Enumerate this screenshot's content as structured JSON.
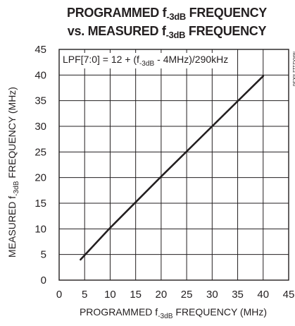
{
  "chart_data": {
    "type": "line",
    "title_line1": {
      "prefix": "PROGRAMMED f",
      "sub": "-3dB",
      "suffix": " FREQUENCY"
    },
    "title_line2": {
      "prefix": "vs. MEASURED f",
      "sub": "-3dB",
      "suffix": " FREQUENCY"
    },
    "xlabel": {
      "prefix": "PROGRAMMED f",
      "sub": "-3dB",
      "suffix": " FREQUENCY (MHz)"
    },
    "ylabel": {
      "prefix": "MEASURED f",
      "sub": "-3dB",
      "suffix": " FREQUENCY (MHz)"
    },
    "annotation": {
      "prefix": "LPF[7:0] = 12 + (f",
      "sub": "-3dB",
      "suffix": " - 4MHz)/290kHz"
    },
    "side_note": "MAX2112 toc30",
    "xlim": [
      0,
      45
    ],
    "ylim": [
      0,
      45
    ],
    "x_ticks": [
      0,
      5,
      10,
      15,
      20,
      25,
      30,
      35,
      40,
      45
    ],
    "y_ticks": [
      0,
      5,
      10,
      15,
      20,
      25,
      30,
      35,
      40,
      45
    ],
    "grid": true,
    "series": [
      {
        "x": [
          4.2,
          10,
          20,
          30,
          40
        ],
        "y": [
          4.0,
          10.2,
          20.2,
          30.0,
          39.8
        ]
      }
    ]
  }
}
